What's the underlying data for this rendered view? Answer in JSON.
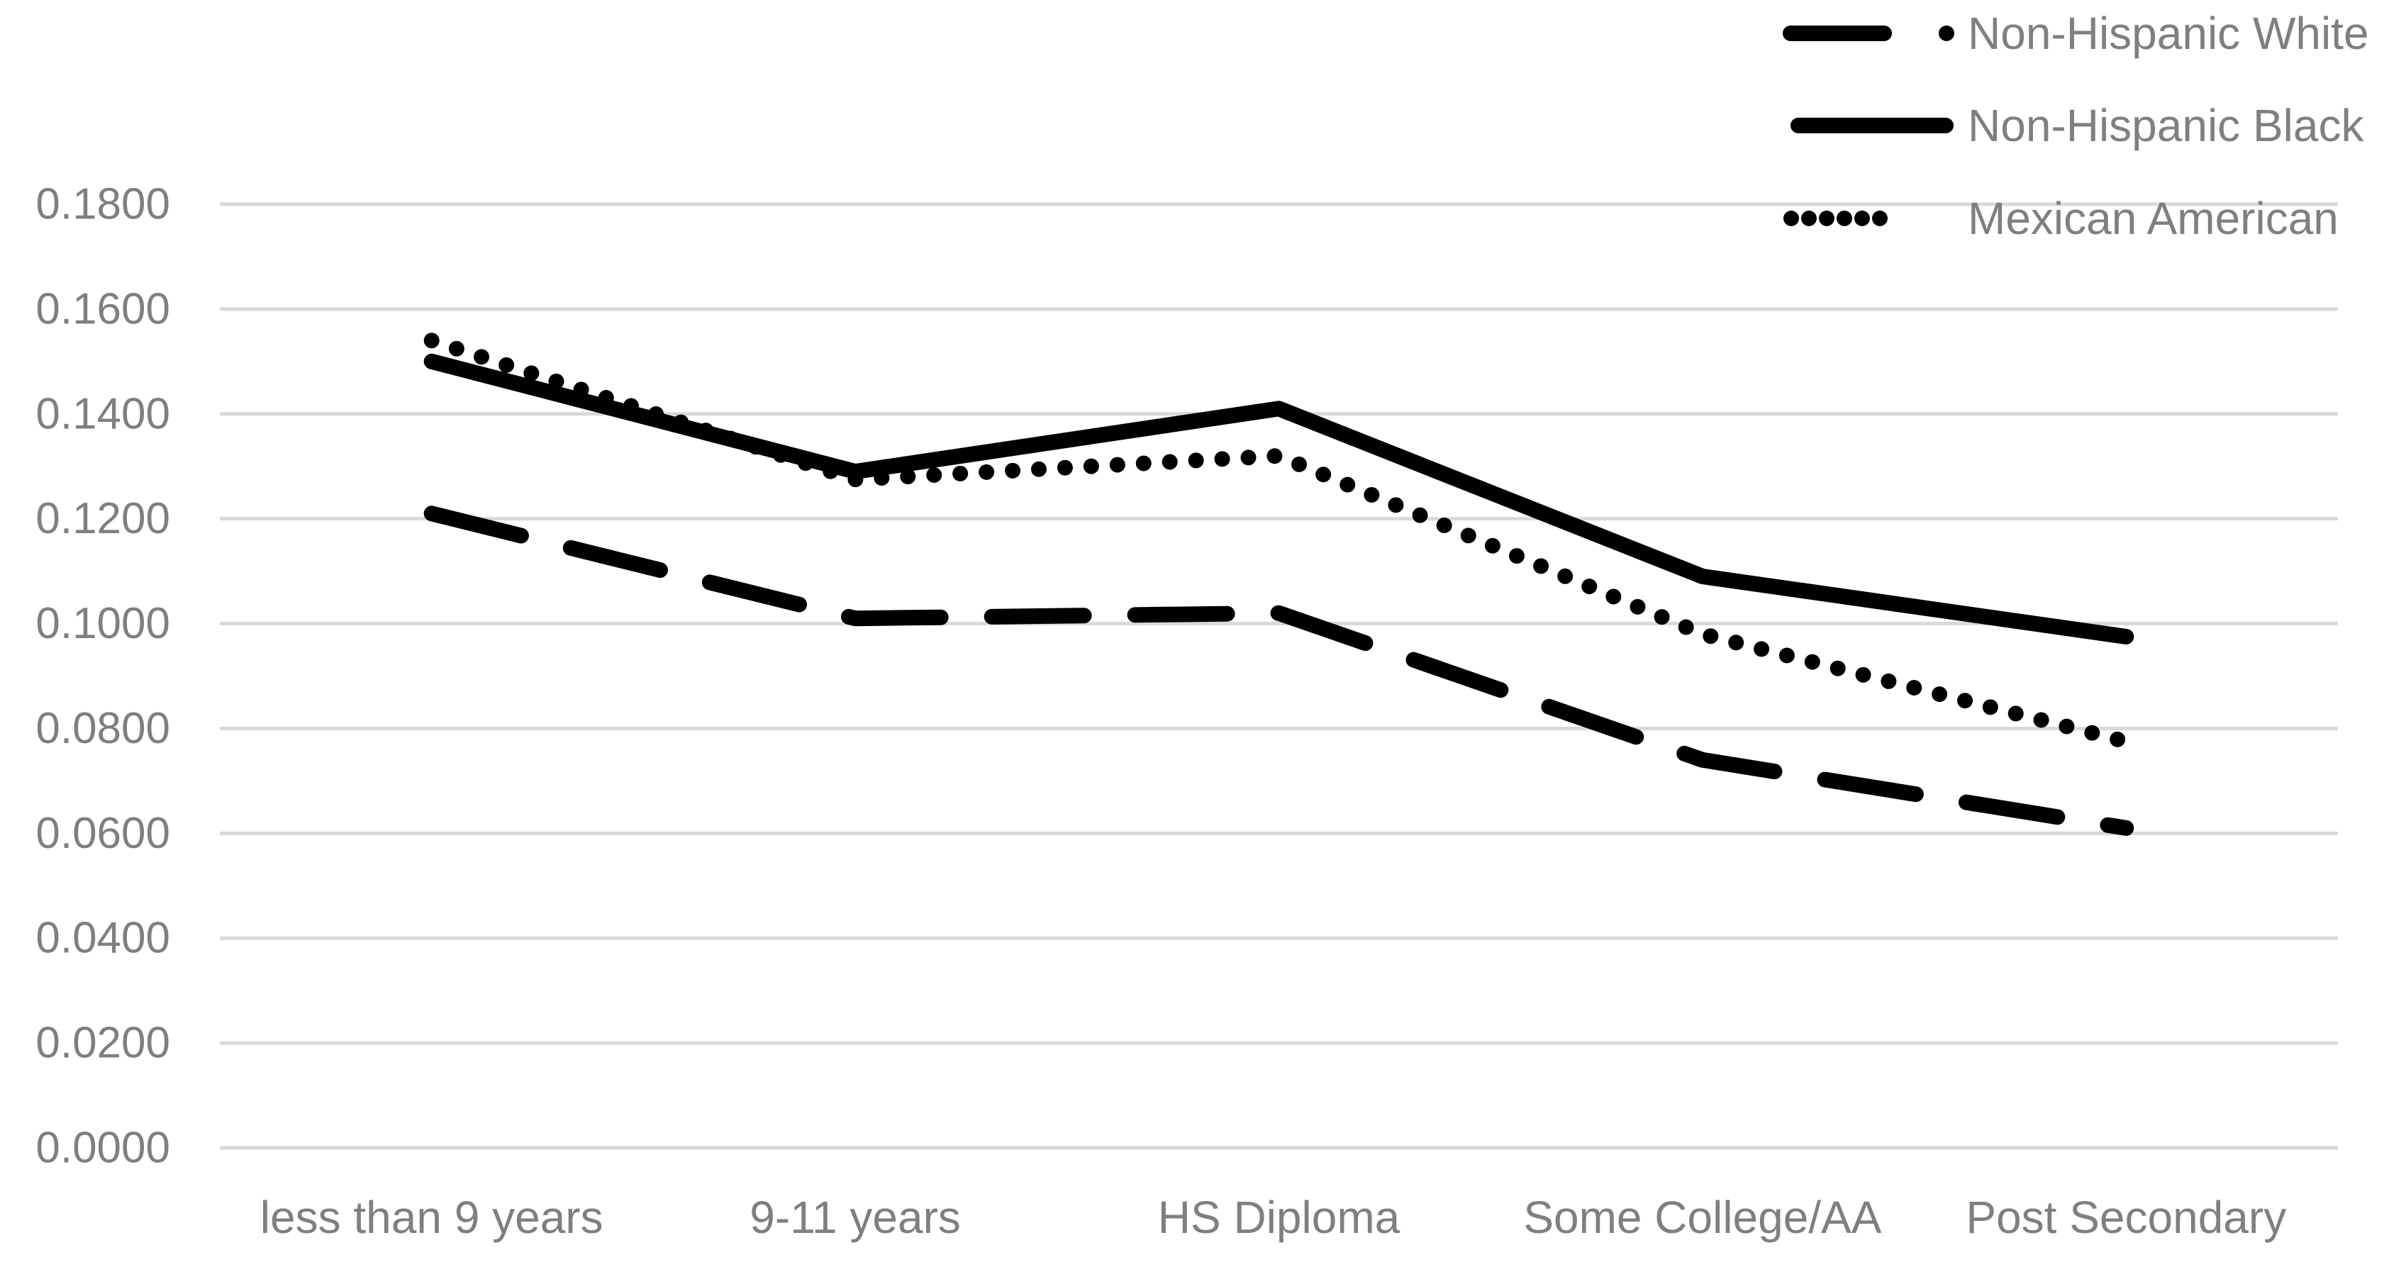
{
  "chart_data": {
    "type": "line",
    "title": "",
    "xlabel": "",
    "ylabel": "",
    "categories": [
      "less than 9 years",
      "9-11 years",
      "HS Diploma",
      "Some College/AA",
      "Post Secondary"
    ],
    "series": [
      {
        "name": "Non-Hispanic White",
        "line_style": "long-dash",
        "color": "#000000",
        "values": [
          0.121,
          0.101,
          0.102,
          0.074,
          0.061
        ]
      },
      {
        "name": "Non-Hispanic Black",
        "line_style": "solid",
        "color": "#000000",
        "values": [
          0.15,
          0.129,
          0.141,
          0.109,
          0.0975
        ]
      },
      {
        "name": "Mexican American",
        "line_style": "dotted",
        "color": "#000000",
        "values": [
          0.154,
          0.1275,
          0.132,
          0.098,
          0.0775
        ]
      }
    ],
    "ylim": [
      0.0,
      0.18
    ],
    "ytick_step": 0.02,
    "ytick_labels": [
      "0.0000",
      "0.0200",
      "0.0400",
      "0.0600",
      "0.0800",
      "0.1000",
      "0.1200",
      "0.1400",
      "0.1600",
      "0.1800"
    ],
    "grid": true,
    "legend_position": "top-right",
    "colors": {
      "axis_text": "#7f7f7f",
      "gridline": "#d9d9d9",
      "series_line": "#000000",
      "background": "#ffffff"
    }
  }
}
